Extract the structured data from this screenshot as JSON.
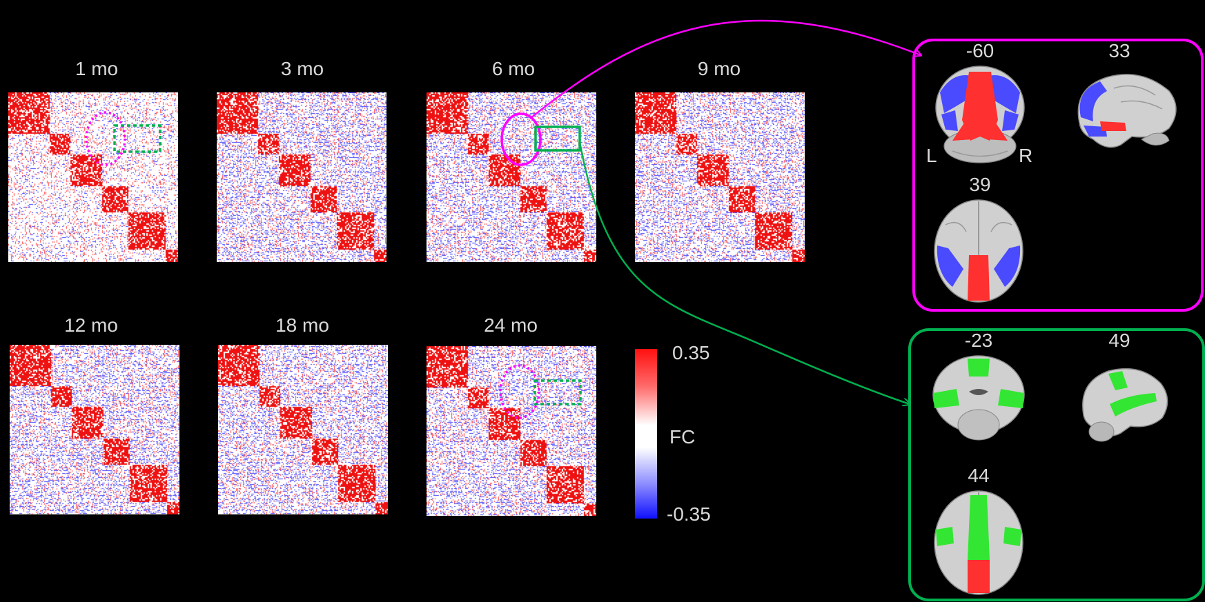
{
  "matrices": [
    {
      "label": "1 mo"
    },
    {
      "label": "3 mo"
    },
    {
      "label": "6 mo"
    },
    {
      "label": "9 mo"
    },
    {
      "label": "12 mo"
    },
    {
      "label": "18 mo"
    },
    {
      "label": "24 mo"
    }
  ],
  "colorbar": {
    "max_label": "0.35",
    "mid_label": "FC",
    "min_label": "-0.35"
  },
  "panels": {
    "magenta": {
      "color": "#ff00ff",
      "coronal": "-60",
      "sagittal": "33",
      "axial": "39",
      "left_label": "L",
      "right_label": "R"
    },
    "green": {
      "color": "#00b050",
      "coronal": "-23",
      "sagittal": "49",
      "axial": "44"
    }
  },
  "colors": {
    "red": "#ff0000",
    "blue": "#2a2aff",
    "green": "#22e022",
    "magenta": "#ff00ff",
    "dkgreen": "#00b050"
  }
}
